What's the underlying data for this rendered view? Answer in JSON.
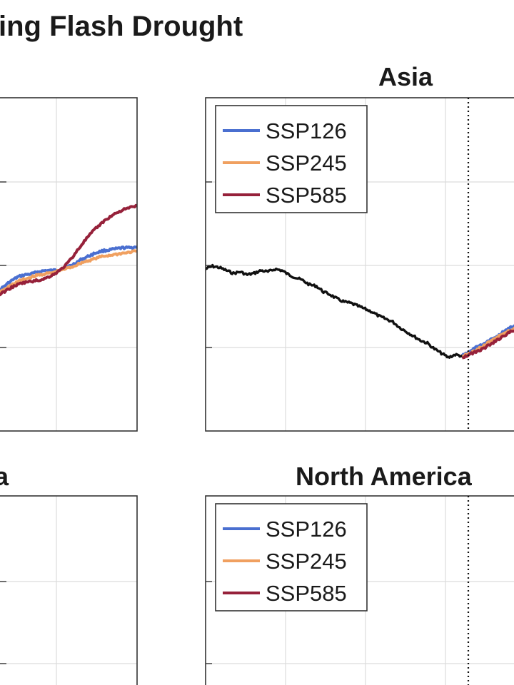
{
  "colors": {
    "ssp126": "#4a6fd0",
    "ssp245": "#f0a060",
    "ssp585": "#96213a",
    "historical": "#111111",
    "grid": "#dcdcdc",
    "axis": "#333333"
  },
  "figure": {
    "title": "ing Flash Drought"
  },
  "chart_data": [
    {
      "type": "line",
      "panel": "top-left",
      "title": "",
      "grid": true,
      "legend": "none",
      "x": [
        0,
        5,
        10,
        15,
        20,
        25,
        30,
        35,
        40,
        45,
        50,
        55,
        60,
        65,
        70,
        75,
        80,
        85,
        90,
        95,
        100
      ],
      "series": [
        {
          "name": "SSP126",
          "color_key": "ssp126",
          "values": [
            0.2,
            0.25,
            0.3,
            0.34,
            0.36,
            0.37,
            0.39,
            0.4,
            0.4,
            0.41,
            0.43,
            0.46,
            0.5,
            0.53,
            0.56,
            0.58,
            0.59,
            0.6,
            0.61,
            0.61,
            0.62
          ]
        },
        {
          "name": "SSP245",
          "color_key": "ssp245",
          "values": [
            0.18,
            0.22,
            0.26,
            0.3,
            0.32,
            0.34,
            0.36,
            0.37,
            0.38,
            0.4,
            0.42,
            0.44,
            0.47,
            0.49,
            0.51,
            0.53,
            0.54,
            0.55,
            0.56,
            0.57,
            0.58
          ]
        },
        {
          "name": "SSP585",
          "color_key": "ssp585",
          "values": [
            0.16,
            0.2,
            0.24,
            0.27,
            0.29,
            0.3,
            0.31,
            0.33,
            0.36,
            0.4,
            0.46,
            0.54,
            0.63,
            0.71,
            0.78,
            0.84,
            0.89,
            0.93,
            0.96,
            0.98,
            1.0
          ]
        }
      ]
    },
    {
      "type": "line",
      "panel": "top-right",
      "title": "Asia",
      "grid": true,
      "legend": "top-left",
      "reference_line": "dotted vertical",
      "historical": {
        "x": [
          0,
          10,
          20,
          30,
          40,
          50,
          60,
          70,
          80,
          90,
          100,
          110,
          120,
          130,
          140,
          150,
          160,
          170,
          180,
          190,
          200,
          210,
          220,
          230,
          240,
          250,
          260,
          270,
          280,
          290,
          300,
          310,
          320,
          330,
          340,
          350,
          360,
          370
        ],
        "values": [
          0.74,
          0.76,
          0.75,
          0.73,
          0.71,
          0.72,
          0.7,
          0.71,
          0.73,
          0.72,
          0.74,
          0.73,
          0.7,
          0.68,
          0.66,
          0.63,
          0.62,
          0.58,
          0.56,
          0.53,
          0.51,
          0.5,
          0.48,
          0.46,
          0.44,
          0.41,
          0.39,
          0.37,
          0.33,
          0.3,
          0.27,
          0.24,
          0.22,
          0.18,
          0.15,
          0.12,
          0.14,
          0.13
        ]
      },
      "series": [
        {
          "name": "SSP126",
          "color_key": "ssp126",
          "x": [
            370,
            380,
            390,
            400,
            410,
            420,
            430,
            440,
            450
          ],
          "values": [
            0.13,
            0.16,
            0.19,
            0.21,
            0.24,
            0.27,
            0.3,
            0.33,
            0.35
          ]
        },
        {
          "name": "SSP245",
          "color_key": "ssp245",
          "x": [
            370,
            380,
            390,
            400,
            410,
            420,
            430,
            440,
            450
          ],
          "values": [
            0.13,
            0.15,
            0.17,
            0.2,
            0.23,
            0.26,
            0.29,
            0.31,
            0.33
          ]
        },
        {
          "name": "SSP585",
          "color_key": "ssp585",
          "x": [
            370,
            380,
            390,
            400,
            410,
            420,
            430,
            440,
            450
          ],
          "values": [
            0.12,
            0.14,
            0.16,
            0.18,
            0.21,
            0.24,
            0.27,
            0.3,
            0.32
          ]
        }
      ],
      "legend_entries": [
        "SSP126",
        "SSP245",
        "SSP585"
      ]
    },
    {
      "type": "line",
      "panel": "bottom-left",
      "title": "a",
      "grid": true,
      "legend": "none",
      "series": []
    },
    {
      "type": "line",
      "panel": "bottom-right",
      "title": "North America",
      "grid": true,
      "legend": "top-left",
      "reference_line": "dotted vertical",
      "series": [],
      "legend_entries": [
        "SSP126",
        "SSP245",
        "SSP585"
      ]
    }
  ]
}
